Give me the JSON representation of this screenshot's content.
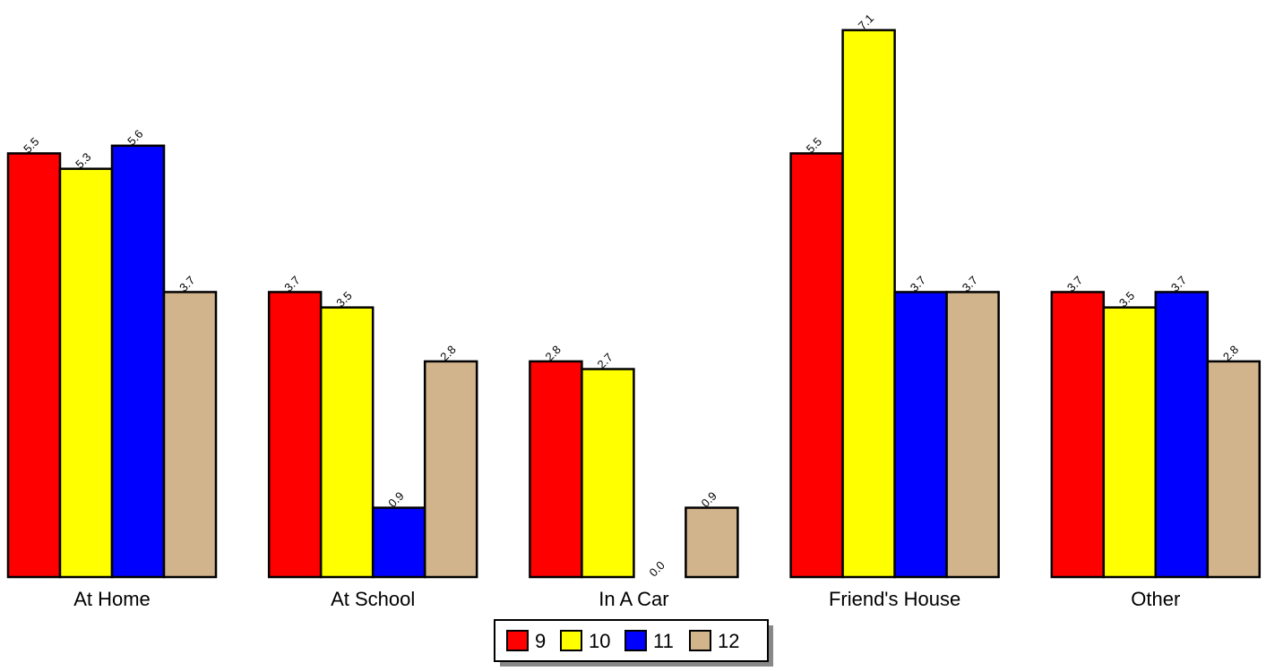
{
  "chart_data": {
    "type": "bar",
    "categories": [
      "At Home",
      "At School",
      "In A Car",
      "Friend's House",
      "Other"
    ],
    "series": [
      {
        "name": "9",
        "color": "#ff0000",
        "values": [
          5.5,
          3.7,
          2.8,
          5.5,
          3.7
        ]
      },
      {
        "name": "10",
        "color": "#ffff00",
        "values": [
          5.3,
          3.5,
          2.7,
          7.1,
          3.5
        ]
      },
      {
        "name": "11",
        "color": "#0000ff",
        "values": [
          5.6,
          0.9,
          0.0,
          3.7,
          3.7
        ]
      },
      {
        "name": "12",
        "color": "#d2b48c",
        "values": [
          3.7,
          2.8,
          0.9,
          3.7,
          2.8
        ]
      }
    ],
    "ylim": [
      0,
      7.1
    ],
    "grid": false,
    "legend_position": "bottom-center",
    "data_labels": true,
    "value_label_format": "one-decimal"
  }
}
